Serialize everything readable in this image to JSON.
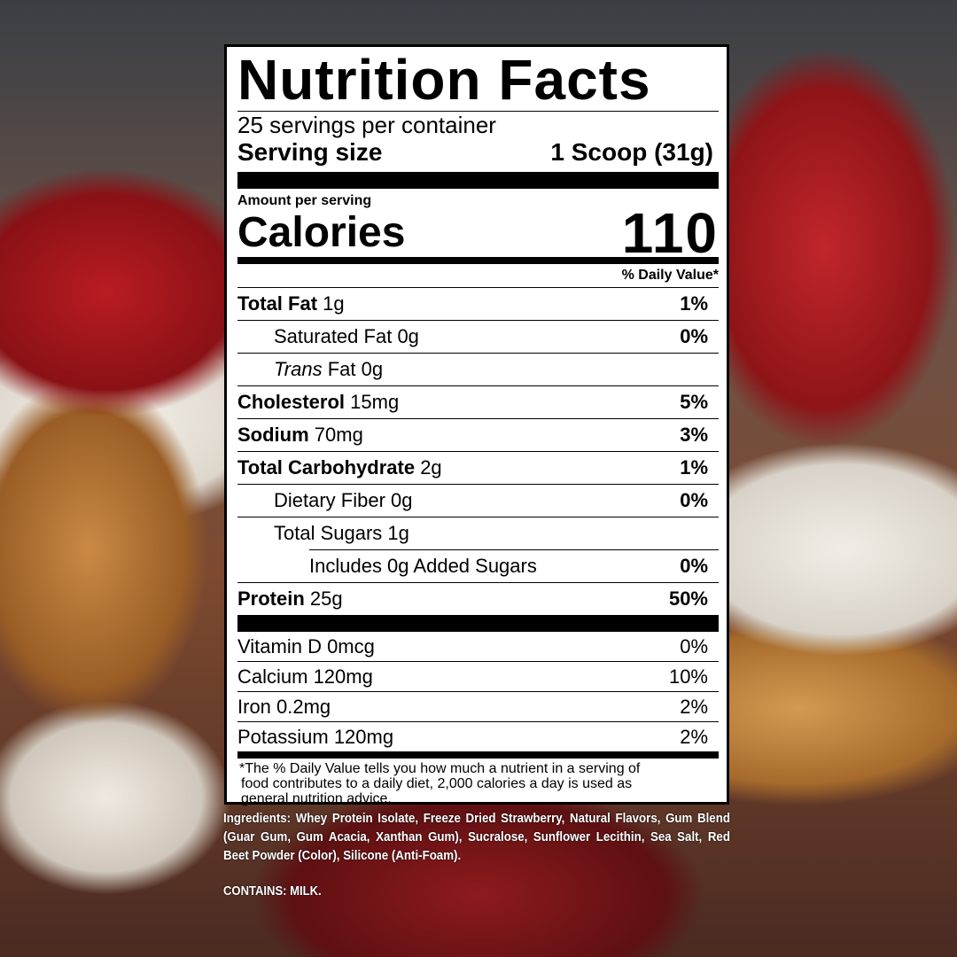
{
  "label": {
    "title": "Nutrition Facts",
    "servings_per_container": "25 servings per container",
    "serving_size_label": "Serving size",
    "serving_size_value": "1 Scoop (31g)",
    "amount_per_serving": "Amount per serving",
    "calories_label": "Calories",
    "calories_value": "110",
    "daily_value_header": "% Daily Value*",
    "nutrients": [
      {
        "name": "Total Fat",
        "amount": "1g",
        "dv": "1%"
      },
      {
        "name": "Saturated Fat",
        "amount": "0g",
        "dv": "0%"
      },
      {
        "name": "Trans",
        "name_rest": "Fat",
        "amount": "0g",
        "dv": ""
      },
      {
        "name": "Cholesterol",
        "amount": "15mg",
        "dv": "5%"
      },
      {
        "name": "Sodium",
        "amount": "70mg",
        "dv": "3%"
      },
      {
        "name": "Total Carbohydrate",
        "amount": "2g",
        "dv": "1%"
      },
      {
        "name": "Dietary Fiber",
        "amount": "0g",
        "dv": "0%"
      },
      {
        "name": "Total Sugars",
        "amount": "1g",
        "dv": ""
      },
      {
        "name": "Includes 0g Added Sugars",
        "amount": "",
        "dv": "0%"
      },
      {
        "name": "Protein",
        "amount": "25g",
        "dv": "50%"
      }
    ],
    "vitamins": [
      {
        "name": "Vitamin D 0mcg",
        "dv": "0%"
      },
      {
        "name": "Calcium 120mg",
        "dv": "10%"
      },
      {
        "name": "Iron 0.2mg",
        "dv": "2%"
      },
      {
        "name": "Potassium 120mg",
        "dv": "2%"
      }
    ],
    "footnote": [
      "*The % Daily Value tells you how much a nutrient in a serving of",
      "food contributes to a daily diet, 2,000 calories a day is used as",
      "general nutrition advice."
    ]
  },
  "ingredients": "Ingredients: Whey Protein Isolate, Freeze Dried Strawberry, Natural Flavors, Gum Blend (Guar Gum, Gum Acacia, Xanthan Gum), Sucralose, Sunflower Lecithin, Sea Salt, Red Beet Powder (Color), Silicone (Anti-Foam).",
  "contains": "CONTAINS: MILK."
}
